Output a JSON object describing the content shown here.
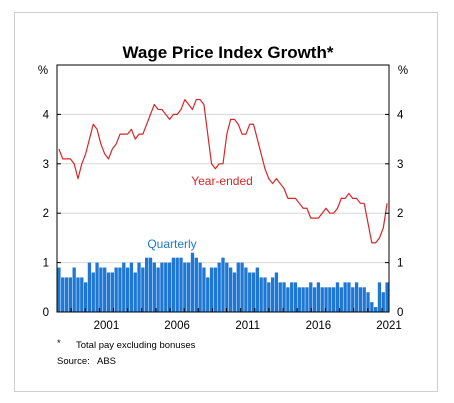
{
  "chart_data": {
    "type": "bar+line",
    "title": "Wage Price Index Growth*",
    "y_unit_left": "%",
    "y_unit_right": "%",
    "ylim": [
      0,
      5
    ],
    "y_ticks": [
      "0",
      "1",
      "2",
      "3",
      "4"
    ],
    "x_tick_labels": [
      "2001",
      "2006",
      "2011",
      "2016",
      "2021"
    ],
    "x_start": 1998.0,
    "x_end": 2021.5,
    "series": [
      {
        "name": "Year-ended",
        "kind": "line",
        "color": "#d62728",
        "values": [
          3.3,
          3.1,
          3.1,
          3.1,
          3.0,
          2.7,
          3.0,
          3.2,
          3.5,
          3.8,
          3.7,
          3.4,
          3.2,
          3.1,
          3.3,
          3.4,
          3.6,
          3.6,
          3.6,
          3.7,
          3.5,
          3.6,
          3.6,
          3.8,
          4.0,
          4.2,
          4.1,
          4.1,
          4.0,
          3.9,
          4.0,
          4.0,
          4.1,
          4.3,
          4.2,
          4.1,
          4.3,
          4.3,
          4.2,
          3.6,
          3.0,
          2.9,
          3.0,
          3.0,
          3.6,
          3.9,
          3.9,
          3.8,
          3.6,
          3.6,
          3.8,
          3.8,
          3.5,
          3.2,
          2.9,
          2.7,
          2.6,
          2.7,
          2.6,
          2.5,
          2.3,
          2.3,
          2.3,
          2.2,
          2.1,
          2.1,
          1.9,
          1.9,
          1.9,
          2.0,
          2.1,
          2.0,
          2.0,
          2.1,
          2.3,
          2.3,
          2.4,
          2.3,
          2.3,
          2.2,
          2.2,
          1.8,
          1.4,
          1.4,
          1.5,
          1.7,
          2.2
        ]
      },
      {
        "name": "Quarterly",
        "kind": "bar",
        "color": "#1f77d4",
        "values": [
          0.9,
          0.7,
          0.7,
          0.7,
          0.9,
          0.7,
          0.7,
          0.6,
          1.0,
          0.8,
          1.0,
          0.9,
          0.9,
          0.8,
          0.8,
          0.9,
          0.9,
          1.0,
          0.9,
          1.0,
          0.8,
          1.0,
          0.9,
          1.1,
          1.1,
          1.0,
          0.9,
          1.0,
          1.0,
          1.0,
          1.1,
          1.1,
          1.1,
          1.0,
          1.0,
          1.2,
          1.1,
          1.0,
          0.9,
          0.7,
          0.9,
          0.9,
          1.0,
          1.1,
          1.0,
          0.9,
          0.8,
          1.0,
          1.0,
          0.9,
          0.8,
          0.8,
          0.9,
          0.7,
          0.7,
          0.6,
          0.7,
          0.8,
          0.6,
          0.6,
          0.5,
          0.6,
          0.6,
          0.5,
          0.5,
          0.5,
          0.6,
          0.5,
          0.6,
          0.5,
          0.5,
          0.5,
          0.5,
          0.6,
          0.5,
          0.6,
          0.6,
          0.5,
          0.6,
          0.5,
          0.5,
          0.4,
          0.2,
          0.1,
          0.6,
          0.4,
          0.6
        ]
      }
    ],
    "footnote_symbol": "*",
    "footnote": "Total pay excluding bonuses",
    "source_label": "Source:",
    "source": "ABS",
    "grid": true
  }
}
